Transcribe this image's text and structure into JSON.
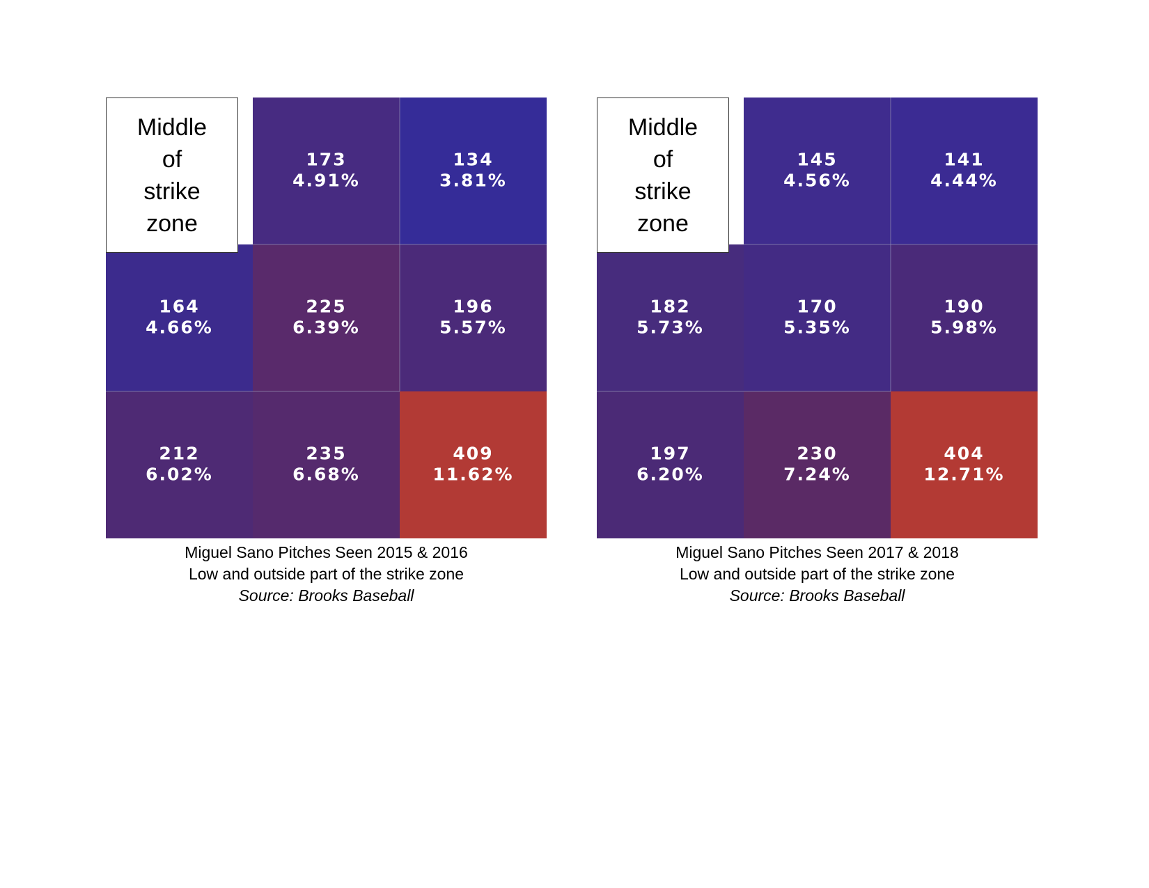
{
  "chart_data": [
    {
      "type": "heatmap",
      "label_box": [
        "Middle",
        "of",
        "strike",
        "zone"
      ],
      "caption": [
        "Miguel Sano Pitches Seen 2015 & 2016",
        "Low and outside part of the strike zone",
        "Source: Brooks Baseball"
      ],
      "cells": [
        [
          null,
          {
            "count": "173",
            "pct": "4.91%",
            "color": "#472b81"
          },
          {
            "count": "134",
            "pct": "3.81%",
            "color": "#352c98"
          }
        ],
        [
          {
            "count": "164",
            "pct": "4.66%",
            "color": "#3c2b8d"
          },
          {
            "count": "225",
            "pct": "6.39%",
            "color": "#592a6b"
          },
          {
            "count": "196",
            "pct": "5.57%",
            "color": "#4b2a79"
          }
        ],
        [
          {
            "count": "212",
            "pct": "6.02%",
            "color": "#4e2a74"
          },
          {
            "count": "235",
            "pct": "6.68%",
            "color": "#552a6d"
          },
          {
            "count": "409",
            "pct": "11.62%",
            "color": "#b23a35"
          }
        ]
      ]
    },
    {
      "type": "heatmap",
      "label_box": [
        "Middle",
        "of",
        "strike",
        "zone"
      ],
      "caption": [
        "Miguel Sano Pitches Seen 2017 & 2018",
        "Low and outside part of the strike zone",
        "Source: Brooks Baseball"
      ],
      "cells": [
        [
          null,
          {
            "count": "145",
            "pct": "4.56%",
            "color": "#3f2c8e"
          },
          {
            "count": "141",
            "pct": "4.44%",
            "color": "#3b2b93"
          }
        ],
        [
          {
            "count": "182",
            "pct": "5.73%",
            "color": "#472c7d"
          },
          {
            "count": "170",
            "pct": "5.35%",
            "color": "#432b84"
          },
          {
            "count": "190",
            "pct": "5.98%",
            "color": "#4a2a79"
          }
        ],
        [
          {
            "count": "197",
            "pct": "6.20%",
            "color": "#4b2a76"
          },
          {
            "count": "230",
            "pct": "7.24%",
            "color": "#5a2a65"
          },
          {
            "count": "404",
            "pct": "12.71%",
            "color": "#b33a34"
          }
        ]
      ]
    }
  ]
}
